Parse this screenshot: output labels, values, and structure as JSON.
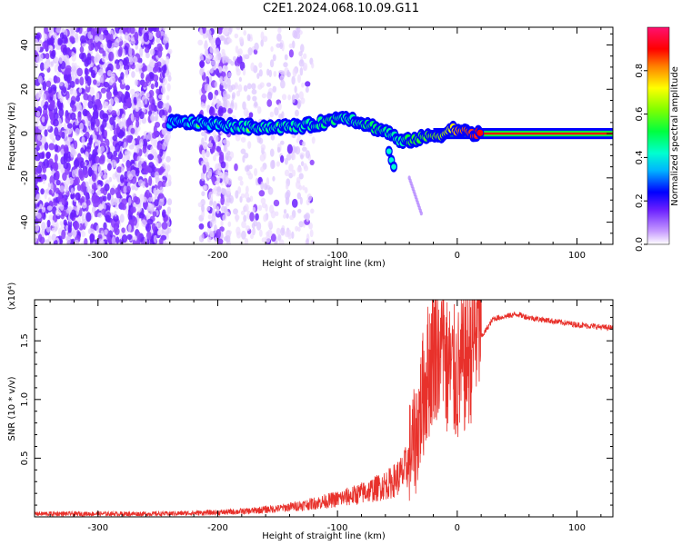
{
  "title": "C2E1.2024.068.10.09.G11",
  "chart_data": [
    {
      "type": "heatmap",
      "xlabel": "Height of straight line (km)",
      "ylabel": "Frequency (Hz)",
      "xlim": [
        -353,
        130
      ],
      "ylim": [
        -50,
        48
      ],
      "xticks": [
        -300,
        -200,
        -100,
        0,
        100
      ],
      "xtick_labels": [
        "-300",
        "-200",
        "-100",
        "0",
        "100"
      ],
      "yticks": [
        -40,
        -20,
        0,
        20,
        40
      ],
      "ytick_labels": [
        "-40",
        "-20",
        "0",
        "20",
        "40"
      ],
      "colorbar": {
        "label": "Normalized spectral amplitude",
        "range": [
          0,
          1
        ],
        "ticks": [
          0.0,
          0.2,
          0.4,
          0.6,
          0.8
        ],
        "tick_labels": [
          "0.0",
          "0.2",
          "0.4",
          "0.6",
          "0.8"
        ]
      },
      "ridge": {
        "x": [
          -240,
          -220,
          -200,
          -180,
          -160,
          -140,
          -120,
          -105,
          -95,
          -85,
          -75,
          -65,
          -55,
          -50,
          -45,
          -40,
          -30,
          -20,
          -10,
          -5,
          0,
          10,
          20,
          60,
          130
        ],
        "y": [
          5,
          5,
          4,
          3,
          3,
          3,
          4,
          6,
          8,
          6,
          4,
          2,
          0,
          -3,
          -4,
          -3,
          -2,
          -1,
          0,
          2,
          2,
          0,
          0,
          0,
          0
        ],
        "amplitude": [
          0.35,
          0.4,
          0.4,
          0.45,
          0.45,
          0.45,
          0.45,
          0.5,
          0.45,
          0.45,
          0.5,
          0.5,
          0.45,
          0.45,
          0.45,
          0.55,
          0.55,
          0.6,
          0.65,
          0.7,
          0.8,
          0.85,
          0.9,
          0.9,
          0.9
        ]
      },
      "branch": {
        "x": [
          -57,
          -55,
          -53
        ],
        "y": [
          -8,
          -12,
          -15
        ]
      },
      "tail": {
        "x": [
          -40,
          -35,
          -30
        ],
        "y": [
          -20,
          -28,
          -36
        ]
      },
      "noise_region_x": [
        -353,
        -200
      ]
    },
    {
      "type": "line",
      "xlabel": "Height of straight line (km)",
      "ylabel": "SNR (10 * v/v)",
      "y_multiplier": "(x10⁴)",
      "xlim": [
        -353,
        130
      ],
      "ylim": [
        0,
        1.85
      ],
      "xticks": [
        -300,
        -200,
        -100,
        0,
        100
      ],
      "xtick_labels": [
        "-300",
        "-200",
        "-100",
        "0",
        "100"
      ],
      "yticks": [
        0.5,
        1.0,
        1.5
      ],
      "ytick_labels": [
        "0.5",
        "1.0",
        "1.5"
      ],
      "series": [
        {
          "color": "#e8312b",
          "x": [
            -353,
            -300,
            -250,
            -200,
            -175,
            -150,
            -125,
            -100,
            -85,
            -70,
            -55,
            -45,
            -35,
            -28,
            -22,
            -18,
            -10,
            0,
            10,
            20,
            30,
            40,
            50,
            60,
            80,
            100,
            130
          ],
          "y": [
            0.02,
            0.02,
            0.02,
            0.03,
            0.04,
            0.06,
            0.09,
            0.13,
            0.16,
            0.2,
            0.25,
            0.32,
            0.5,
            0.9,
            1.15,
            1.3,
            1.1,
            1.0,
            1.2,
            1.52,
            1.68,
            1.7,
            1.72,
            1.69,
            1.66,
            1.63,
            1.6
          ]
        }
      ]
    }
  ]
}
